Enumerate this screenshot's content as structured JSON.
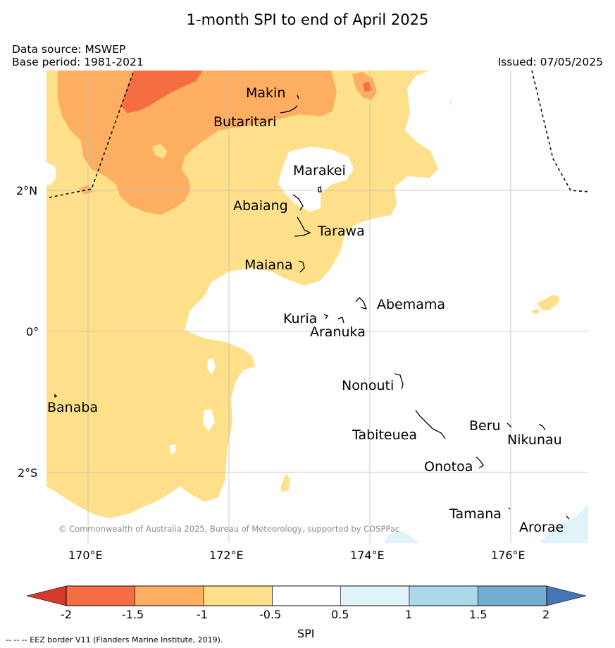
{
  "title": "1-month SPI to end of April 2025",
  "data_source": "Data source: MSWEP",
  "base_period": "Base period: 1981-2021",
  "issued": "Issued: 07/05/2025",
  "copyright": "© Commonwealth of Australia 2025, Bureau of Meteorology, supported by COSPPac",
  "footnote": "--  --  -- EEZ border V11 (Flanders Marine Institute, 2019).",
  "latitude_labels": [
    "2°N",
    "0°",
    "2°S"
  ],
  "longitude_labels": [
    "170°E",
    "172°E",
    "174°E",
    "176°E"
  ],
  "places": [
    "Makin",
    "Butaritari",
    "Marakei",
    "Abaiang",
    "Tarawa",
    "Maiana",
    "Abemama",
    "Kuria",
    "Aranuka",
    "Nonouti",
    "Banaba",
    "Tabiteuea",
    "Beru",
    "Nikunau",
    "Onotoa",
    "Tamana",
    "Arorae"
  ],
  "colorbar": {
    "label": "SPI",
    "ticks": [
      "-2",
      "-1.5",
      "-1",
      "-0.5",
      "0.5",
      "1",
      "1.5",
      "2"
    ],
    "colors": {
      "below_-2": "#d7382c",
      "-2_to_-1.5": "#f46d43",
      "-1.5_to_-1": "#fdae61",
      "-1_to_-0.5": "#fee08b",
      "-0.5_to_0.5": "#ffffff",
      "0.5_to_1": "#e0f3f8",
      "1_to_1.5": "#abd9e9",
      "1.5_to_2": "#74add1",
      "above_2": "#4575b4"
    }
  }
}
